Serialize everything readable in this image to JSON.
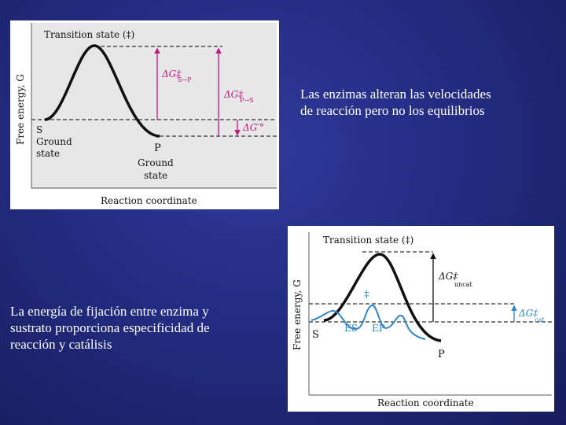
{
  "slide": {
    "background_color": "#232c82",
    "caption_top": "Las enzimas alteran las velocidades\nde reacción pero no los equilibrios",
    "caption_bottom": "La energía de fijación entre enzima y\nsustrato proporciona especificidad de\nreacción y catálisis"
  },
  "figure_top": {
    "transition_state": "Transition state (‡)",
    "y_axis": "Free energy, G",
    "x_axis": "Reaction coordinate",
    "delta_g_s_to_p": "ΔG‡",
    "delta_g_s_to_p_sub": "S→P",
    "delta_g_p_to_s": "ΔG‡",
    "delta_g_p_to_s_sub": "P→S",
    "delta_g_standard": "ΔG′°",
    "s_label": "S",
    "s_ground_1": "Ground",
    "s_ground_2": "state",
    "p_label": "P",
    "p_ground_1": "Ground",
    "p_ground_2": "state",
    "accent_color": "#c2187f"
  },
  "figure_bottom": {
    "transition_state": "Transition state (‡)",
    "y_axis": "Free energy, G",
    "x_axis": "Reaction coordinate",
    "delta_g_uncat": "ΔG‡",
    "delta_g_uncat_sub": "uncat",
    "delta_g_cat": "ΔG‡",
    "delta_g_cat_sub": "cat",
    "dagger": "‡",
    "es_label": "ES",
    "ep_label": "EP",
    "s_label": "S",
    "p_label": "P",
    "catalyzed_color": "#2f86c8"
  }
}
